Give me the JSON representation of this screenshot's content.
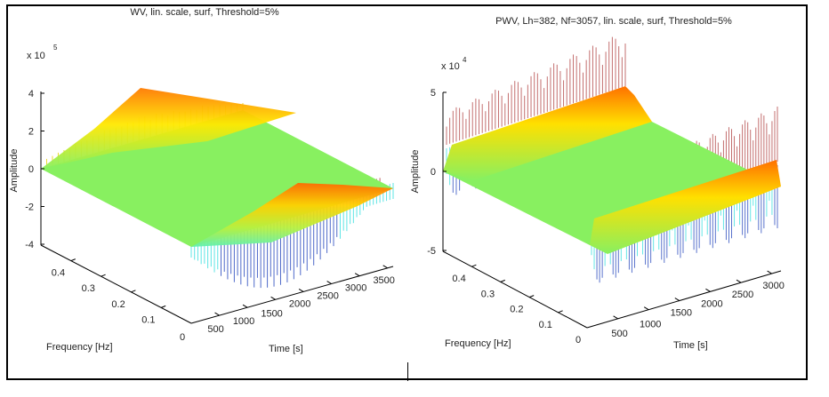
{
  "chart_data": [
    {
      "type": "surface",
      "title": "WV, lin. scale, surf, Threshold=5%",
      "exponent_label": "x 10",
      "exponent": "5",
      "zlabel": "Amplitude",
      "xlabel": "Time [s]",
      "ylabel": "Frequency [Hz]",
      "zticks": [
        "4",
        "2",
        "0",
        "-2",
        "-4"
      ],
      "zlim": [
        -4,
        4
      ],
      "yticks": [
        "0.4",
        "0.3",
        "0.2",
        "0.1",
        "0"
      ],
      "ylim": [
        0,
        0.5
      ],
      "xticks": [
        "500",
        "1000",
        "1500",
        "2000",
        "2500",
        "3000",
        "3500"
      ],
      "xlim": [
        0,
        3600
      ],
      "peaks": [
        {
          "frequency_hz": 0.45,
          "time_s": 1300,
          "amplitude_x1e5": 3.2
        },
        {
          "frequency_hz": 0.05,
          "time_s": 2300,
          "amplitude_x1e5": 3.0
        }
      ],
      "threshold_pct": 5
    },
    {
      "type": "surface",
      "title": "PWV, Lh=382, Nf=3057, lin. scale, surf, Threshold=5%",
      "exponent_label": "x 10",
      "exponent": "4",
      "zlabel": "Amplitude",
      "xlabel": "Time [s]",
      "ylabel": "Frequency [Hz]",
      "zticks": [
        "5",
        "0",
        "-5"
      ],
      "zlim": [
        -5,
        5
      ],
      "yticks": [
        "0.4",
        "0.3",
        "0.2",
        "0.1",
        "0"
      ],
      "ylim": [
        0,
        0.5
      ],
      "xticks": [
        "500",
        "1000",
        "1500",
        "2000",
        "2500",
        "3000"
      ],
      "xlim": [
        0,
        3057
      ],
      "ridges": [
        {
          "frequency_hz": 0.45,
          "amplitude_x1e4": 5
        },
        {
          "frequency_hz": 0.05,
          "amplitude_x1e4": 5
        }
      ],
      "threshold_pct": 5
    }
  ],
  "colors": {
    "surface_base": "#88f060",
    "peak_high": "#ff6a00",
    "peak_mid": "#ffe600",
    "stem_red": "#b04040",
    "stem_low": "#40e0e0",
    "stem_deep": "#3050c0"
  }
}
